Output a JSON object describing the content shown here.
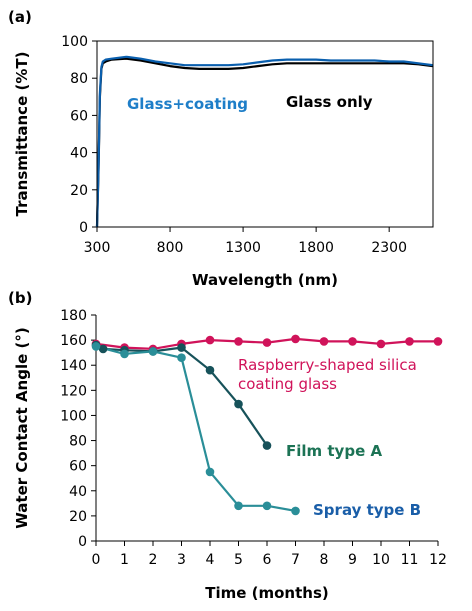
{
  "chart_data": [
    {
      "panel_label": "(a)",
      "type": "line",
      "xlabel": "Wavelength (nm)",
      "ylabel": "Transmittance (%T)",
      "xlim": [
        300,
        2600
      ],
      "ylim": [
        0,
        100
      ],
      "xticks": [
        "300",
        "800",
        "1300",
        "1800",
        "2300"
      ],
      "yticks": [
        "0",
        "20",
        "40",
        "60",
        "80",
        "100"
      ],
      "grid": false,
      "series": [
        {
          "name": "Glass only",
          "color": "#000000",
          "x": [
            300,
            310,
            320,
            330,
            340,
            360,
            400,
            500,
            600,
            700,
            800,
            900,
            1000,
            1100,
            1200,
            1300,
            1400,
            1500,
            1600,
            1700,
            1800,
            1900,
            2000,
            2100,
            2200,
            2300,
            2400,
            2500,
            2600
          ],
          "y": [
            0,
            30,
            70,
            85,
            88,
            89,
            90,
            90.5,
            89.5,
            88,
            86.5,
            85.5,
            85,
            85,
            85,
            85.5,
            86.5,
            87.5,
            88,
            88,
            88,
            88,
            88,
            88,
            88,
            88,
            88,
            87.5,
            86.5
          ]
        },
        {
          "name": "Glass+coating",
          "color": "#0a5fae",
          "x": [
            300,
            310,
            320,
            330,
            340,
            360,
            400,
            500,
            600,
            700,
            800,
            900,
            1000,
            1100,
            1200,
            1300,
            1400,
            1500,
            1600,
            1700,
            1800,
            1900,
            2000,
            2100,
            2200,
            2300,
            2400,
            2500,
            2600
          ],
          "y": [
            0,
            32,
            72,
            86,
            89,
            90,
            90.5,
            91.5,
            90.5,
            89,
            88,
            87,
            87,
            87,
            87,
            87.5,
            88.5,
            89.5,
            90,
            90,
            90,
            89.5,
            89.5,
            89.5,
            89.5,
            89,
            89,
            88,
            87
          ]
        }
      ],
      "annotations": [
        {
          "text": "Glass+coating",
          "color": "#1e7ec8"
        },
        {
          "text": "Glass only",
          "color": "#000000"
        }
      ]
    },
    {
      "panel_label": "(b)",
      "type": "line",
      "xlabel": "Time (months)",
      "ylabel": "Water Contact Angle (°)",
      "xlim": [
        0,
        12
      ],
      "ylim": [
        0,
        180
      ],
      "xticks": [
        "0",
        "1",
        "2",
        "3",
        "4",
        "5",
        "6",
        "7",
        "8",
        "9",
        "10",
        "11",
        "12"
      ],
      "yticks": [
        "0",
        "20",
        "40",
        "60",
        "80",
        "100",
        "120",
        "140",
        "160",
        "180"
      ],
      "grid": false,
      "series": [
        {
          "name": "Raspberry-shaped silica coating glass",
          "color": "#d0135a",
          "x": [
            0,
            1,
            2,
            3,
            4,
            5,
            6,
            7,
            8,
            9,
            10,
            11,
            12
          ],
          "y": [
            157,
            154,
            153,
            157,
            160,
            159,
            158,
            161,
            159,
            159,
            157,
            159,
            159
          ]
        },
        {
          "name": "Film type A",
          "color": "#17525a",
          "x": [
            0,
            0.25,
            1,
            2,
            3,
            4,
            5,
            6
          ],
          "y": [
            156,
            153,
            152,
            151,
            154,
            136,
            109,
            76
          ]
        },
        {
          "name": "Spray type B",
          "color": "#2a8e98",
          "x": [
            0,
            1,
            2,
            3,
            4,
            5,
            6,
            7
          ],
          "y": [
            155,
            149,
            151,
            146,
            55,
            28,
            28,
            24
          ]
        }
      ],
      "annotations": [
        {
          "text": "Raspberry-shaped silica",
          "color": "#d0135a"
        },
        {
          "text": "coating glass",
          "color": "#d0135a"
        },
        {
          "text": "Film type A",
          "color": "#1c7355"
        },
        {
          "text": "Spray type B",
          "color": "#1a5ea8"
        }
      ]
    }
  ]
}
